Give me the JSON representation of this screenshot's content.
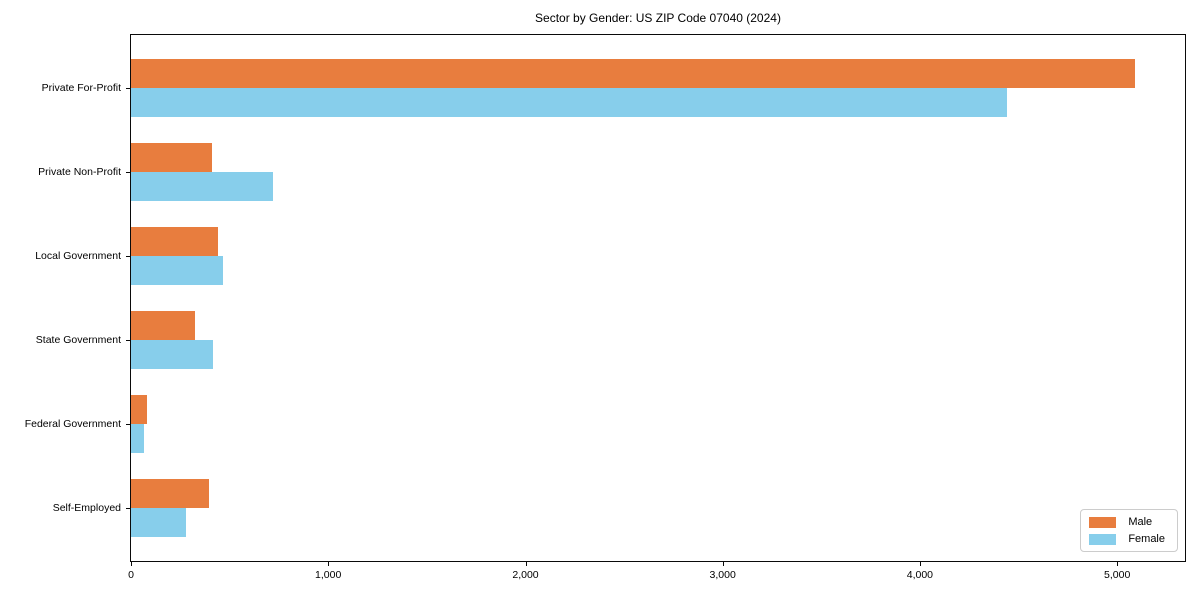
{
  "chart_data": {
    "type": "bar",
    "orientation": "horizontal",
    "title": "Sector by Gender: US ZIP Code 07040 (2024)",
    "categories": [
      "Private For-Profit",
      "Private Non-Profit",
      "Local Government",
      "State Government",
      "Federal Government",
      "Self-Employed"
    ],
    "series": [
      {
        "name": "Male",
        "color": "#e87d3e",
        "values": [
          5090,
          410,
          440,
          325,
          80,
          395
        ]
      },
      {
        "name": "Female",
        "color": "#87ceeb",
        "values": [
          4440,
          720,
          465,
          415,
          65,
          280
        ]
      }
    ],
    "xlabel": "",
    "ylabel": "",
    "xlim": [
      0,
      5344
    ],
    "x_ticks": [
      0,
      1000,
      2000,
      3000,
      4000,
      5000
    ],
    "x_tick_labels": [
      "0",
      "1,000",
      "2,000",
      "3,000",
      "4,000",
      "5,000"
    ],
    "grid": false,
    "legend_position": "lower right",
    "axis_color": "#0a0a0a",
    "background_color": "#ffffff"
  }
}
